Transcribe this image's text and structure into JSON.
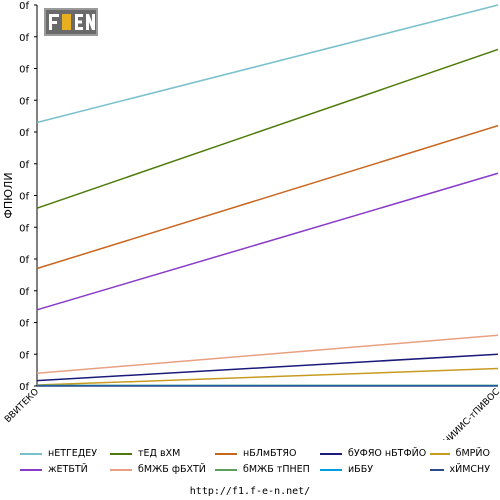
{
  "chart_data": {
    "type": "line",
    "ylabel": "ФПЮЛИ",
    "y_tick_labels": [
      "0f",
      "0f",
      "0f",
      "0f",
      "0f",
      "0f",
      "0f",
      "0f",
      "0f",
      "0f",
      "0f",
      "0f",
      "0f"
    ],
    "ylim": [
      0,
      12
    ],
    "categories": [
      "ВВИТЕКО",
      "ёНИИИС-тПИВОС"
    ],
    "grid": false,
    "legend_position": "bottom",
    "series": [
      {
        "name": "нЕТГЕДЕУ",
        "color": "#79c0cc",
        "values": [
          8.3,
          12.0
        ]
      },
      {
        "name": "тЕД вХМ",
        "color": "#4d7a0a",
        "values": [
          5.6,
          10.6
        ]
      },
      {
        "name": "нБЛмБТЯО",
        "color": "#c8661e",
        "values": [
          3.7,
          8.2
        ]
      },
      {
        "name": "бУФЯО нБТФЙО",
        "color": "#1a1a7a",
        "values": [
          0.17,
          1.0
        ]
      },
      {
        "name": "бМРЙО",
        "color": "#c89a20",
        "values": [
          0.03,
          0.55
        ]
      },
      {
        "name": "жЕТБТЙ",
        "color": "#8a3ac8",
        "values": [
          2.4,
          6.7
        ]
      },
      {
        "name": "бМЖБ фБХТЙ",
        "color": "#e8a080",
        "values": [
          0.4,
          1.6
        ]
      },
      {
        "name": "бМЖБ тПНЕП",
        "color": "#5aa05a",
        "values": [
          0.02,
          0.02
        ]
      },
      {
        "name": "иББУ",
        "color": "#00a0e0",
        "values": [
          0.01,
          0.01
        ]
      },
      {
        "name": "хЙМСНУ",
        "color": "#2a4a8a",
        "values": [
          0.0,
          0.0
        ]
      }
    ]
  },
  "legend_order": [
    0,
    1,
    2,
    3,
    4,
    5,
    6,
    7,
    8,
    9
  ],
  "footer": "http://f1.f-e-n.net/",
  "logo_text": "F1EN"
}
